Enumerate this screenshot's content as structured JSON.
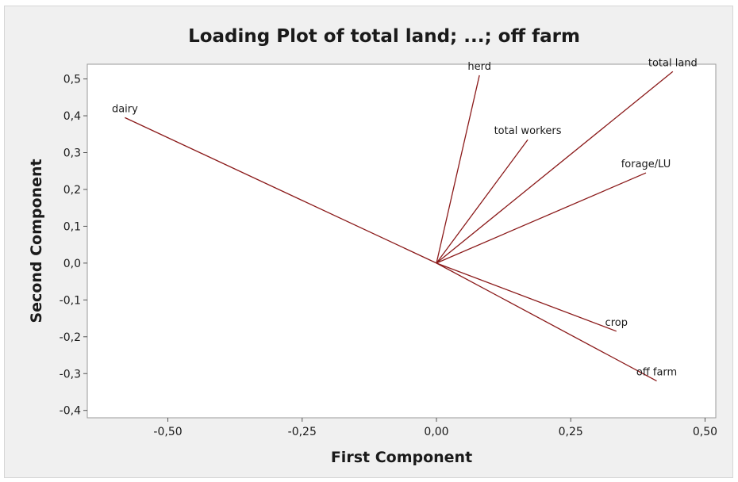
{
  "chart_data": {
    "type": "line",
    "title": "Loading Plot of total land; ...; off farm",
    "xlabel": "First Component",
    "ylabel": "Second Component",
    "xlim": [
      -0.65,
      0.52
    ],
    "ylim": [
      -0.42,
      0.54
    ],
    "xticks": [
      "-0,50",
      "-0,25",
      "0,00",
      "0,25",
      "0,50"
    ],
    "xtick_values": [
      -0.5,
      -0.25,
      0.0,
      0.25,
      0.5
    ],
    "yticks": [
      "-0,4",
      "-0,3",
      "-0,2",
      "-0,1",
      "0,0",
      "0,1",
      "0,2",
      "0,3",
      "0,4",
      "0,5"
    ],
    "ytick_values": [
      -0.4,
      -0.3,
      -0.2,
      -0.1,
      0.0,
      0.1,
      0.2,
      0.3,
      0.4,
      0.5
    ],
    "grid": false,
    "line_color": "#8b1a1a",
    "loadings": [
      {
        "name": "total land",
        "x": 0.44,
        "y": 0.52
      },
      {
        "name": "herd",
        "x": 0.08,
        "y": 0.51
      },
      {
        "name": "dairy",
        "x": -0.58,
        "y": 0.395
      },
      {
        "name": "total workers",
        "x": 0.17,
        "y": 0.335
      },
      {
        "name": "forage/LU",
        "x": 0.39,
        "y": 0.245
      },
      {
        "name": "crop",
        "x": 0.335,
        "y": -0.185
      },
      {
        "name": "off farm",
        "x": 0.41,
        "y": -0.32
      }
    ]
  }
}
